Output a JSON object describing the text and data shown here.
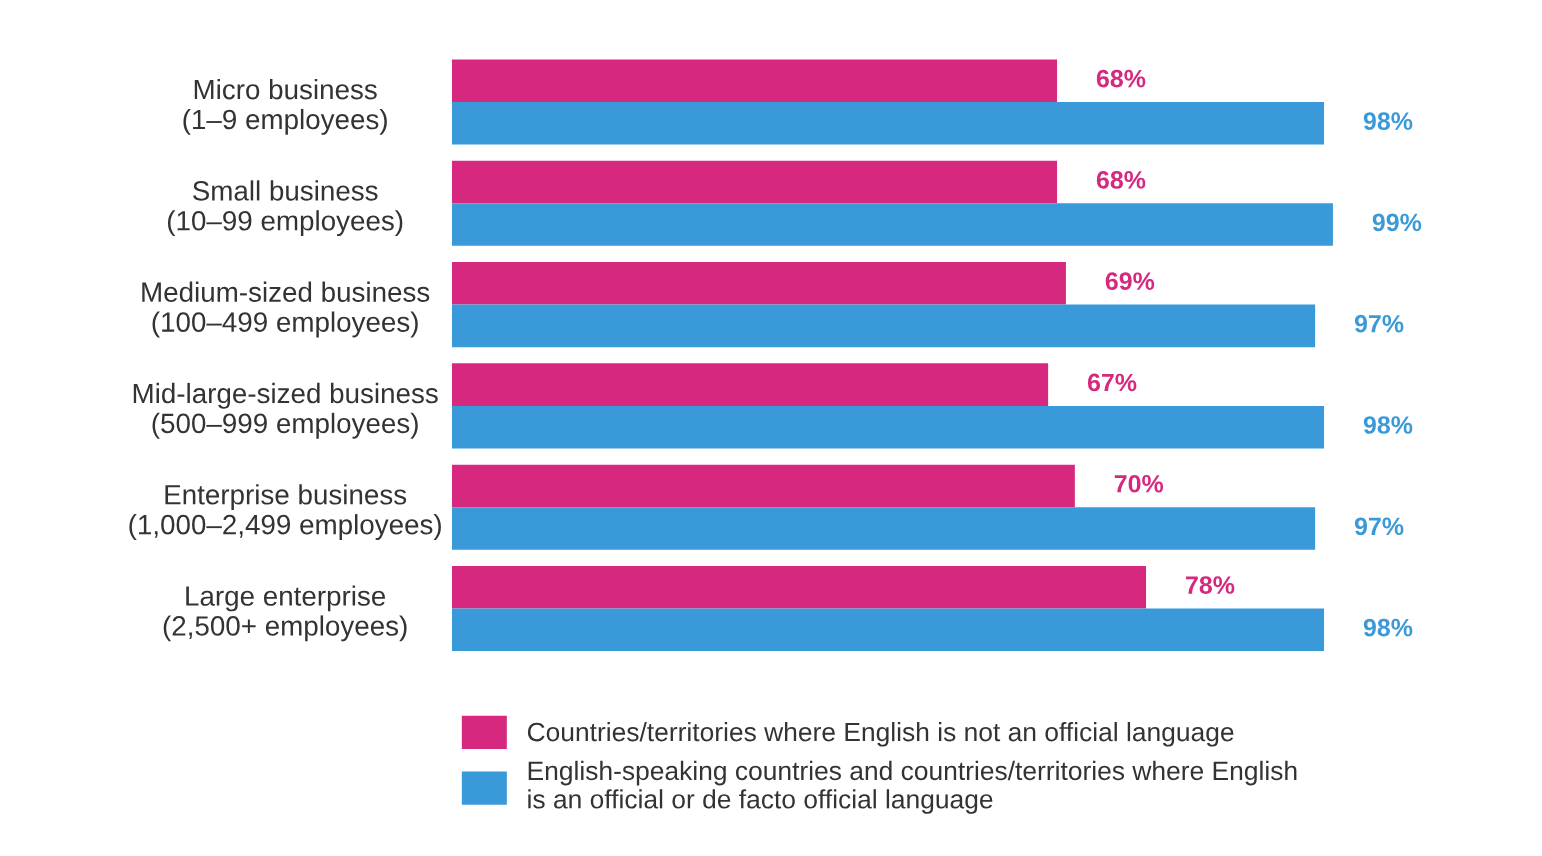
{
  "chart_data": {
    "type": "bar",
    "orientation": "horizontal",
    "categories": [
      "Micro business\n(1–9 employees)",
      "Small business\n(10–99 employees)",
      "Medium-sized business\n(100–499 employees)",
      "Mid-large-sized business\n(500–999 employees)",
      "Enterprise business\n(1,000–2,499 employees)",
      "Large enterprise\n(2,500+ employees)"
    ],
    "series": [
      {
        "name": "Countries/territories where English is not an official language",
        "color": "#d6287f",
        "values": [
          68,
          68,
          69,
          67,
          70,
          78
        ],
        "value_labels": [
          "68%",
          "68%",
          "69%",
          "67%",
          "70%",
          "78%"
        ]
      },
      {
        "name": "English-speaking countries and countries/territories where English\nis an official or de facto official language",
        "color": "#3a9ad9",
        "values": [
          98,
          99,
          97,
          98,
          97,
          98
        ],
        "value_labels": [
          "98%",
          "99%",
          "97%",
          "98%",
          "97%",
          "98%"
        ]
      }
    ],
    "legend": "bottom",
    "tick_labels": "y",
    "grid": false
  }
}
